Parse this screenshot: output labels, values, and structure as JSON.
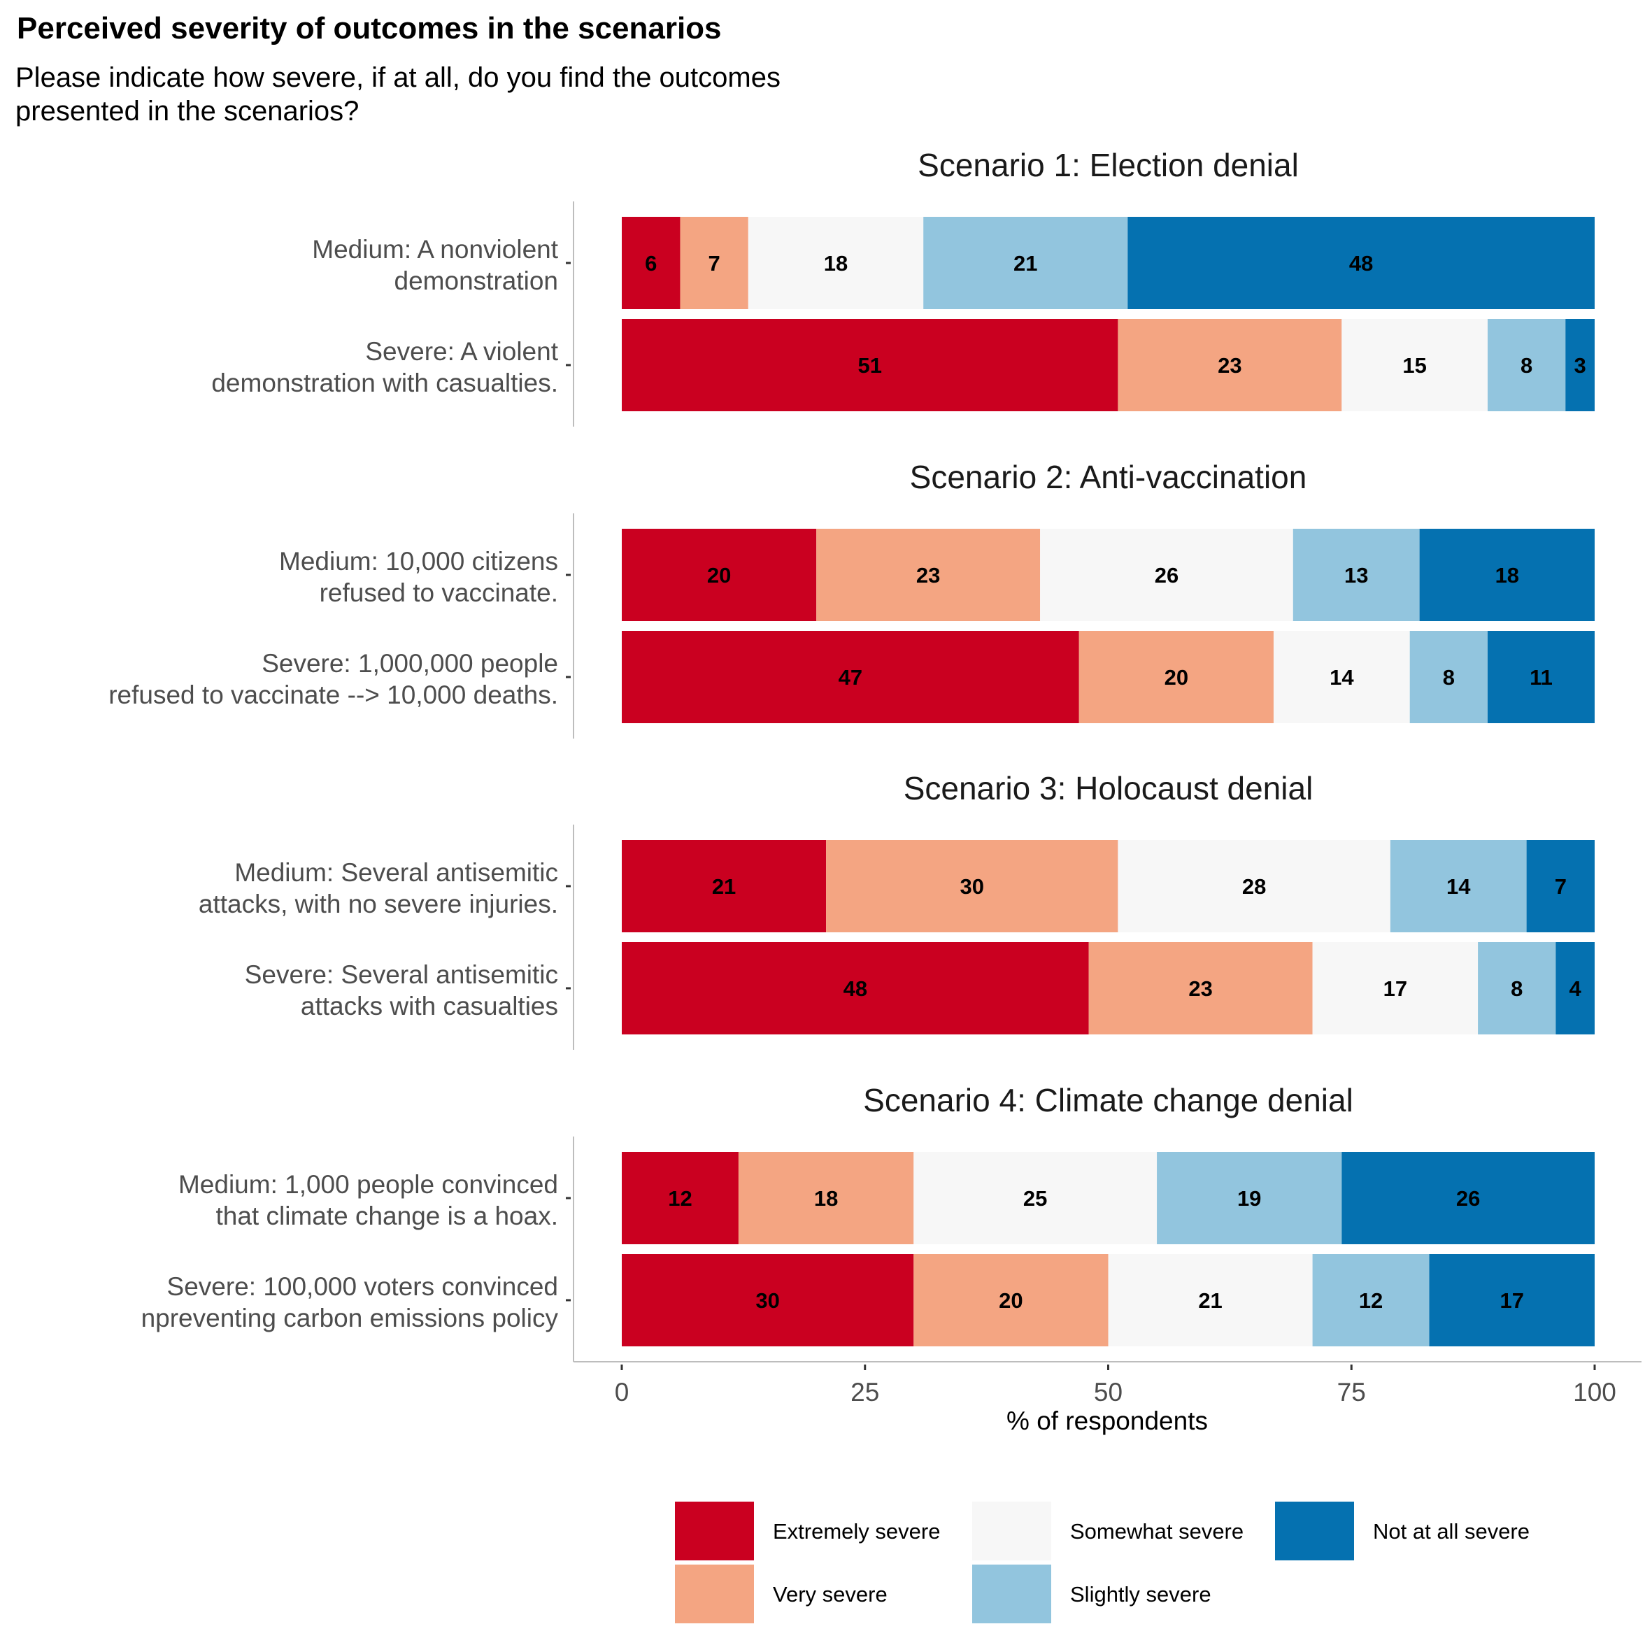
{
  "chart_data": {
    "type": "bar",
    "orientation": "horizontal",
    "stacked": true,
    "title": "Perceived severity of outcomes in the scenarios",
    "subtitle": "Please indicate how severe, if at all, do you find the outcomes presented in the scenarios?",
    "subtitle_lines": [
      "Please indicate how severe, if at all, do you find the outcomes",
      "presented in the scenarios?"
    ],
    "xlabel": "% of respondents",
    "ylabel": "",
    "xlim": [
      0,
      100
    ],
    "xticks": [
      0,
      25,
      50,
      75,
      100
    ],
    "grid": false,
    "legend_position": "bottom",
    "series": [
      {
        "name": "Extremely severe",
        "color": "#CA0020"
      },
      {
        "name": "Very severe",
        "color": "#F4A582"
      },
      {
        "name": "Somewhat severe",
        "color": "#F7F7F7"
      },
      {
        "name": "Slightly severe",
        "color": "#92C5DE"
      },
      {
        "name": "Not at all severe",
        "color": "#0571B0"
      }
    ],
    "facets": [
      {
        "title": "Scenario 1: Election denial",
        "rows": [
          {
            "label": [
              "Medium: A nonviolent",
              "demonstration"
            ],
            "values": [
              6,
              7,
              18,
              21,
              48
            ]
          },
          {
            "label": [
              "Severe: A violent",
              "demonstration with casualties."
            ],
            "values": [
              51,
              23,
              15,
              8,
              3
            ]
          }
        ]
      },
      {
        "title": "Scenario 2: Anti-vaccination",
        "rows": [
          {
            "label": [
              "Medium: 10,000 citizens",
              "refused to vaccinate."
            ],
            "values": [
              20,
              23,
              26,
              13,
              18
            ]
          },
          {
            "label": [
              "Severe: 1,000,000 people",
              "refused to vaccinate --> 10,000 deaths."
            ],
            "values": [
              47,
              20,
              14,
              8,
              11
            ]
          }
        ]
      },
      {
        "title": "Scenario 3: Holocaust denial",
        "rows": [
          {
            "label": [
              "Medium: Several antisemitic",
              "attacks, with no severe injuries."
            ],
            "values": [
              21,
              30,
              28,
              14,
              7
            ]
          },
          {
            "label": [
              "Severe: Several antisemitic",
              "attacks with casualties"
            ],
            "values": [
              48,
              23,
              17,
              8,
              4
            ]
          }
        ]
      },
      {
        "title": "Scenario 4: Climate change denial",
        "rows": [
          {
            "label": [
              "Medium: 1,000 people convinced",
              "that climate change is a hoax."
            ],
            "values": [
              12,
              18,
              25,
              19,
              26
            ]
          },
          {
            "label": [
              "Severe: 100,000 voters convinced",
              "npreventing carbon emissions policy"
            ],
            "values": [
              30,
              20,
              21,
              12,
              17
            ]
          }
        ]
      }
    ]
  }
}
